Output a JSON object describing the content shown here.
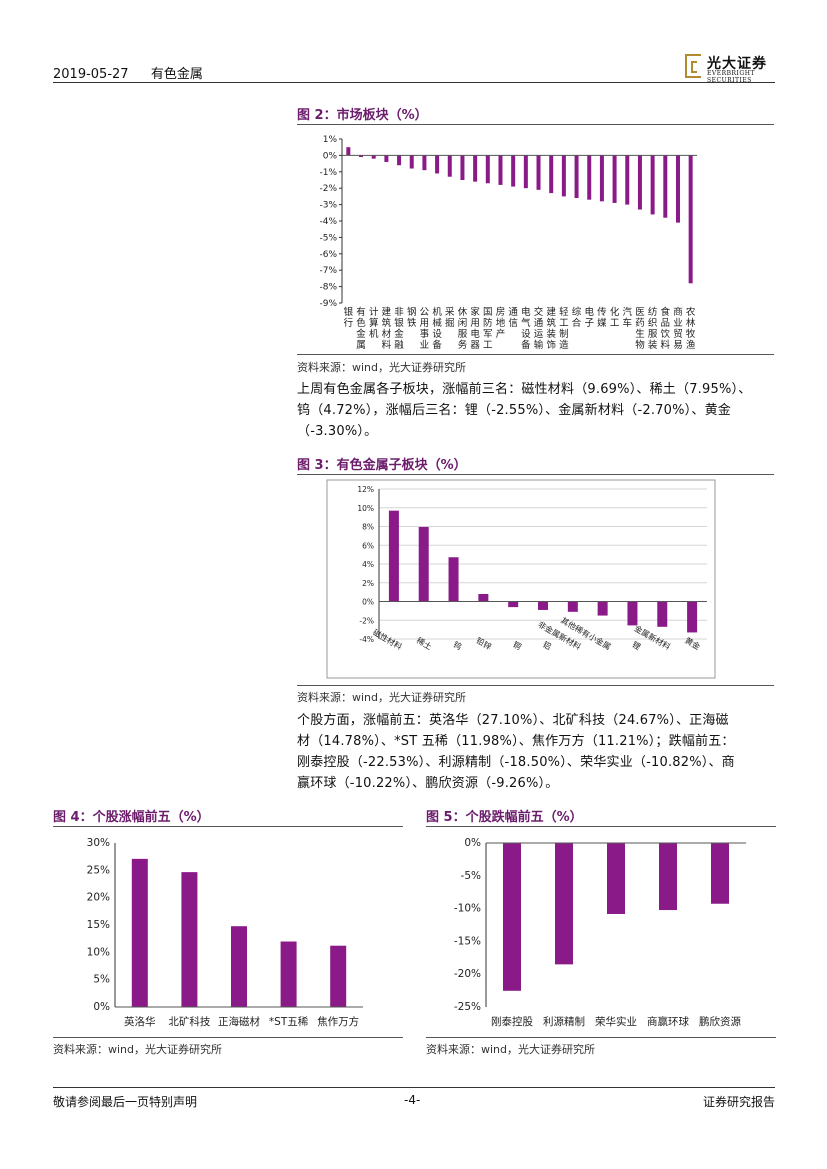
{
  "header": {
    "date": "2019-05-27",
    "sector": "有色金属",
    "logo_cn": "光大证券",
    "logo_en": "EVERBRIGHT SECURITIES"
  },
  "fig2": {
    "title": "图 2：市场板块（%）",
    "source": "资料来源：wind，光大证券研究所",
    "chart_data": {
      "type": "bar",
      "categories": [
        "银行",
        "有色金属",
        "计算机",
        "建筑材料",
        "非银金融",
        "钢铁",
        "公用事业",
        "机械设备",
        "采掘",
        "休闲服务",
        "家用电器",
        "国防军工",
        "房地产",
        "通信",
        "电气设备",
        "交通运输",
        "建筑装饰",
        "轻工制造",
        "综合",
        "电子",
        "传媒",
        "化工",
        "汽车",
        "医药生物",
        "纺织服装",
        "食品饮料",
        "商业贸易",
        "农林牧渔"
      ],
      "values": [
        0.5,
        -0.1,
        -0.2,
        -0.4,
        -0.6,
        -0.8,
        -0.9,
        -1.1,
        -1.3,
        -1.5,
        -1.6,
        -1.7,
        -1.8,
        -1.9,
        -2.0,
        -2.1,
        -2.3,
        -2.5,
        -2.6,
        -2.7,
        -2.8,
        -2.9,
        -3.0,
        -3.3,
        -3.6,
        -3.8,
        -4.1,
        -7.8
      ],
      "yticks": [
        "1%",
        "0%",
        "-1%",
        "-2%",
        "-3%",
        "-4%",
        "-5%",
        "-6%",
        "-7%",
        "-8%",
        "-9%"
      ],
      "ylim": [
        -9,
        1
      ],
      "color": "#8b1a89"
    }
  },
  "para1": [
    "上周有色金属各子板块，涨幅前三名：磁性材料（9.69%）、稀土（7.95%）、",
    "钨（4.72%），涨幅后三名：锂（-2.55%）、金属新材料（-2.70%）、黄金",
    "（-3.30%）。"
  ],
  "fig3": {
    "title": "图 3：有色金属子板块（%）",
    "source": "资料来源：wind，光大证券研究所",
    "chart_data": {
      "type": "bar",
      "categories": [
        "磁性材料",
        "稀土",
        "钨",
        "铅锌",
        "铜",
        "铝",
        "非金属新材料",
        "其他稀有小金属",
        "锂",
        "金属新材料",
        "黄金"
      ],
      "values": [
        9.69,
        7.95,
        4.72,
        0.8,
        -0.6,
        -0.9,
        -1.1,
        -1.5,
        -2.55,
        -2.7,
        -3.3
      ],
      "yticks": [
        "12%",
        "10%",
        "8%",
        "6%",
        "4%",
        "2%",
        "0%",
        "-2%",
        "-4%"
      ],
      "ylim": [
        -4,
        12
      ],
      "color": "#8b1a89"
    }
  },
  "para2": [
    "个股方面，涨幅前五：英洛华（27.10%）、北矿科技（24.67%）、正海磁",
    "材（14.78%）、*ST 五稀（11.98%）、焦作万方（11.21%）；跌幅前五：",
    "刚泰控股（-22.53%）、利源精制（-18.50%）、荣华实业（-10.82%）、商",
    "赢环球（-10.22%）、鹏欣资源（-9.26%）。"
  ],
  "fig4": {
    "title": "图 4：个股涨幅前五（%）",
    "source": "资料来源：wind，光大证券研究所",
    "chart_data": {
      "type": "bar",
      "categories": [
        "英洛华",
        "北矿科技",
        "正海磁材",
        "*ST五稀",
        "焦作万方"
      ],
      "values": [
        27.1,
        24.67,
        14.78,
        11.98,
        11.21
      ],
      "yticks": [
        "30%",
        "25%",
        "20%",
        "15%",
        "10%",
        "5%",
        "0%"
      ],
      "ylim": [
        0,
        30
      ],
      "color": "#8b1a89"
    }
  },
  "fig5": {
    "title": "图 5：个股跌幅前五（%）",
    "source": "资料来源：wind，光大证券研究所",
    "chart_data": {
      "type": "bar",
      "categories": [
        "刚泰控股",
        "利源精制",
        "荣华实业",
        "商赢环球",
        "鹏欣资源"
      ],
      "values": [
        -22.53,
        -18.5,
        -10.82,
        -10.22,
        -9.26
      ],
      "yticks": [
        "0%",
        "-5%",
        "-10%",
        "-15%",
        "-20%",
        "-25%"
      ],
      "ylim": [
        -25,
        0
      ],
      "color": "#8b1a89"
    }
  },
  "footer": {
    "left": "敬请参阅最后一页特别声明",
    "page": "-4-",
    "right": "证券研究报告"
  }
}
